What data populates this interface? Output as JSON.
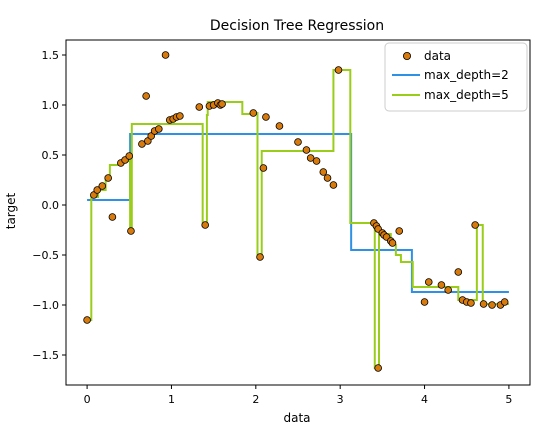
{
  "chart_data": {
    "type": "scatter",
    "title": "Decision Tree Regression",
    "xlabel": "data",
    "ylabel": "target",
    "xlim": [
      -0.25,
      5.25
    ],
    "ylim": [
      -1.8,
      1.65
    ],
    "xticks": [
      0,
      1,
      2,
      3,
      4,
      5
    ],
    "xtick_labels": [
      "0",
      "1",
      "2",
      "3",
      "4",
      "5"
    ],
    "yticks": [
      -1.5,
      -1.0,
      -0.5,
      0.0,
      0.5,
      1.0,
      1.5
    ],
    "ytick_labels": [
      "−1.5",
      "−1.0",
      "−0.5",
      "0.0",
      "0.5",
      "1.0",
      "1.5"
    ],
    "grid": false,
    "legend_position": "top-right",
    "points": {
      "name": "data",
      "color": "#d97b0c",
      "edge": "#000000",
      "x": [
        0.0,
        0.08,
        0.12,
        0.18,
        0.25,
        0.3,
        0.4,
        0.45,
        0.5,
        0.52,
        0.65,
        0.7,
        0.72,
        0.76,
        0.8,
        0.85,
        0.93,
        0.98,
        1.02,
        1.06,
        1.1,
        1.33,
        1.4,
        1.45,
        1.5,
        1.55,
        1.58,
        1.6,
        1.97,
        2.05,
        2.09,
        2.12,
        2.28,
        2.5,
        2.6,
        2.65,
        2.72,
        2.8,
        2.85,
        2.92,
        2.98,
        3.4,
        3.43,
        3.45,
        3.5,
        3.52,
        3.55,
        3.6,
        3.62,
        3.7,
        4.0,
        4.05,
        4.2,
        4.28,
        4.4,
        4.45,
        4.5,
        4.55,
        4.6,
        4.7,
        4.8,
        4.9,
        4.95
      ],
      "y": [
        -1.15,
        0.1,
        0.15,
        0.19,
        0.27,
        -0.12,
        0.42,
        0.45,
        0.49,
        -0.26,
        0.61,
        1.09,
        0.64,
        0.69,
        0.74,
        0.76,
        1.5,
        0.85,
        0.86,
        0.88,
        0.89,
        0.98,
        -0.2,
        0.99,
        1.0,
        1.02,
        1.0,
        1.01,
        0.92,
        -0.52,
        0.37,
        0.88,
        0.79,
        0.63,
        0.55,
        0.47,
        0.44,
        0.33,
        0.27,
        0.2,
        1.35,
        -0.18,
        -0.21,
        -0.24,
        -0.28,
        -0.3,
        -0.32,
        -0.36,
        -0.38,
        -0.26,
        -0.97,
        -0.77,
        -0.8,
        -0.85,
        -0.67,
        -0.95,
        -0.97,
        -0.98,
        -0.2,
        -0.99,
        -1.0,
        -1.0,
        -0.97
      ],
      "outlier": {
        "x": 3.45,
        "y": -1.63
      }
    },
    "series": [
      {
        "name": "max_depth=2",
        "color": "#2e91e5",
        "step_x": [
          0.0,
          0.51,
          0.51,
          3.13,
          3.13,
          3.85,
          3.85,
          5.0
        ],
        "step_y": [
          0.05,
          0.05,
          0.71,
          0.71,
          -0.45,
          -0.45,
          -0.87,
          -0.87
        ]
      },
      {
        "name": "max_depth=5",
        "color": "#9acd1a",
        "x": [
          0.0,
          0.05,
          0.05,
          0.13,
          0.13,
          0.22,
          0.22,
          0.27,
          0.27,
          0.4,
          0.4,
          0.5,
          0.5,
          0.51,
          0.51,
          0.53,
          0.53,
          1.37,
          1.37,
          1.42,
          1.42,
          1.43,
          1.43,
          1.84,
          1.84,
          1.97,
          1.97,
          2.02,
          2.02,
          2.07,
          2.07,
          2.13,
          2.13,
          2.92,
          2.92,
          3.12,
          3.12,
          3.41,
          3.41,
          3.46,
          3.46,
          3.6,
          3.6,
          3.66,
          3.66,
          3.72,
          3.72,
          3.86,
          3.86,
          4.4,
          4.4,
          4.62,
          4.62,
          4.69,
          4.69,
          5.0
        ],
        "y": [
          -1.15,
          -1.15,
          0.08,
          0.08,
          0.15,
          0.15,
          0.28,
          0.28,
          0.4,
          0.4,
          0.44,
          0.44,
          0.49,
          0.49,
          -0.26,
          -0.26,
          0.81,
          0.81,
          -0.2,
          -0.2,
          0.9,
          0.9,
          1.03,
          1.03,
          0.91,
          0.91,
          0.92,
          0.92,
          -0.52,
          -0.52,
          0.54,
          0.54,
          0.54,
          0.54,
          1.35,
          1.35,
          -0.18,
          -0.18,
          -1.63,
          -1.63,
          -0.29,
          -0.29,
          -0.4,
          -0.4,
          -0.5,
          -0.5,
          -0.57,
          -0.57,
          -0.82,
          -0.82,
          -0.95,
          -0.95,
          -0.2,
          -0.2,
          -0.99,
          -0.99
        ]
      }
    ]
  }
}
